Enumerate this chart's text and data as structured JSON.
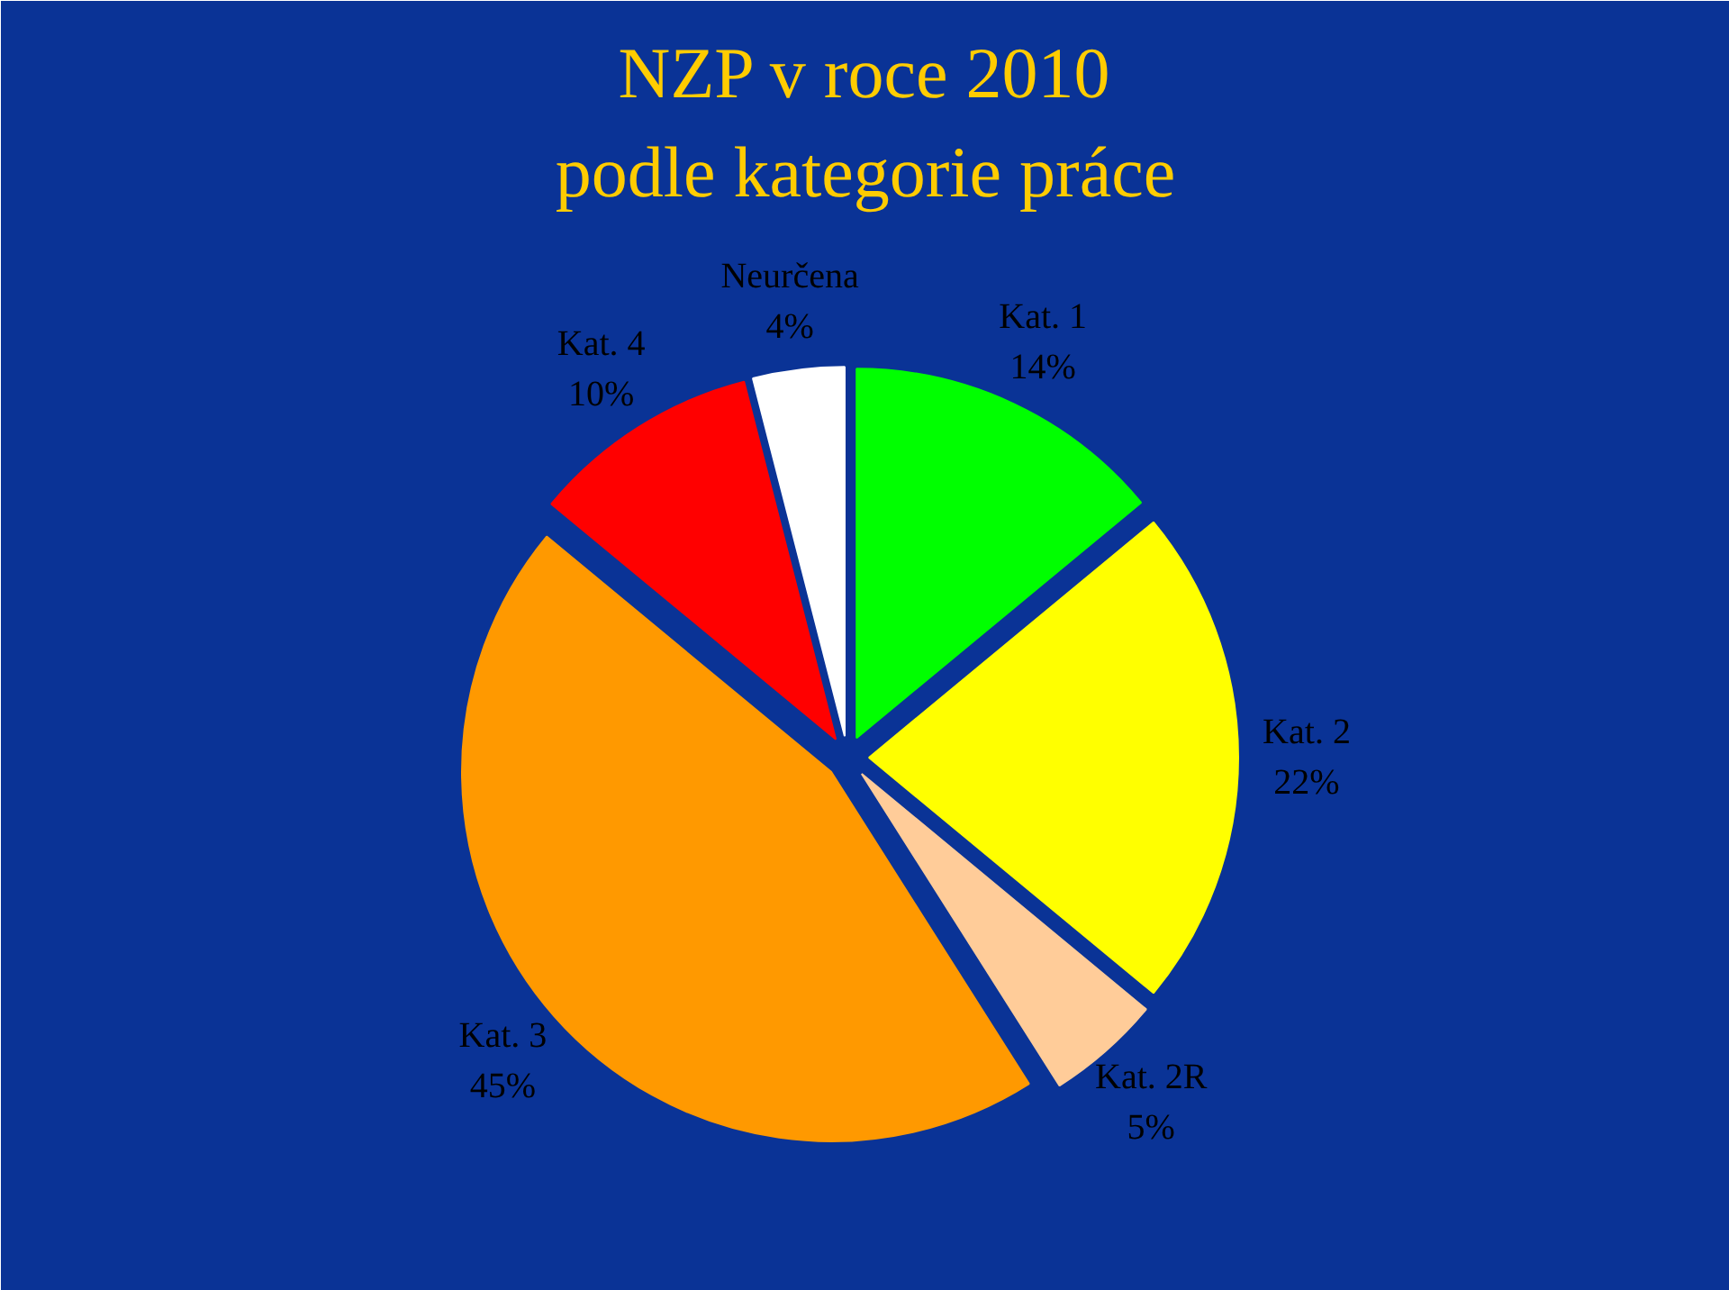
{
  "chart_data": {
    "type": "pie",
    "title": "NZP v roce 2010",
    "subtitle": "podle kategorie práce",
    "categories": [
      "Kat. 1",
      "Kat. 2",
      "Kat. 2R",
      "Kat. 3",
      "Kat. 4",
      "Neurčena"
    ],
    "values": [
      14,
      22,
      5,
      45,
      10,
      4
    ],
    "value_labels": [
      "14%",
      "22%",
      "5%",
      "45%",
      "10%",
      "4%"
    ],
    "colors": [
      "#00ff00",
      "#ffff00",
      "#ffcc99",
      "#ff9900",
      "#ff0000",
      "#ffffff"
    ]
  }
}
